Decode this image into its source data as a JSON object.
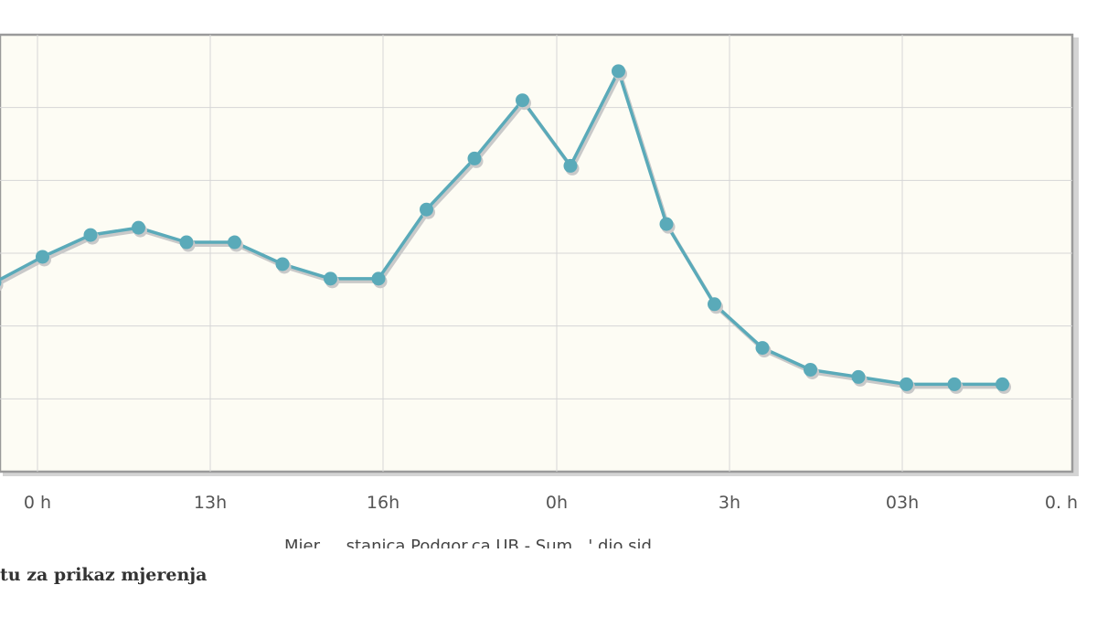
{
  "chart_data": {
    "type": "line",
    "title": "",
    "xlabel": "Mjer  .. stanica Podgor.ca UB - Sum,  ' dio sid",
    "ylabel": "",
    "x_tick_labels": [
      "0 h",
      "13h",
      "16h",
      "0h",
      "3h",
      "03h",
      "0. h"
    ],
    "ylim": [
      0,
      6
    ],
    "grid": true,
    "legend": "none",
    "line_color": "#5aaab9",
    "plot_background": "#fdfcf4",
    "series": [
      {
        "values": [
          2.6,
          2.95,
          3.25,
          3.35,
          3.15,
          3.15,
          2.85,
          2.65,
          2.65,
          3.6,
          4.3,
          5.1,
          4.2,
          5.5,
          3.4,
          2.3,
          1.7,
          1.4,
          1.3,
          1.2,
          1.2,
          1.2
        ]
      }
    ]
  },
  "footer": {
    "text": "tu za prikaz mjerenja"
  }
}
